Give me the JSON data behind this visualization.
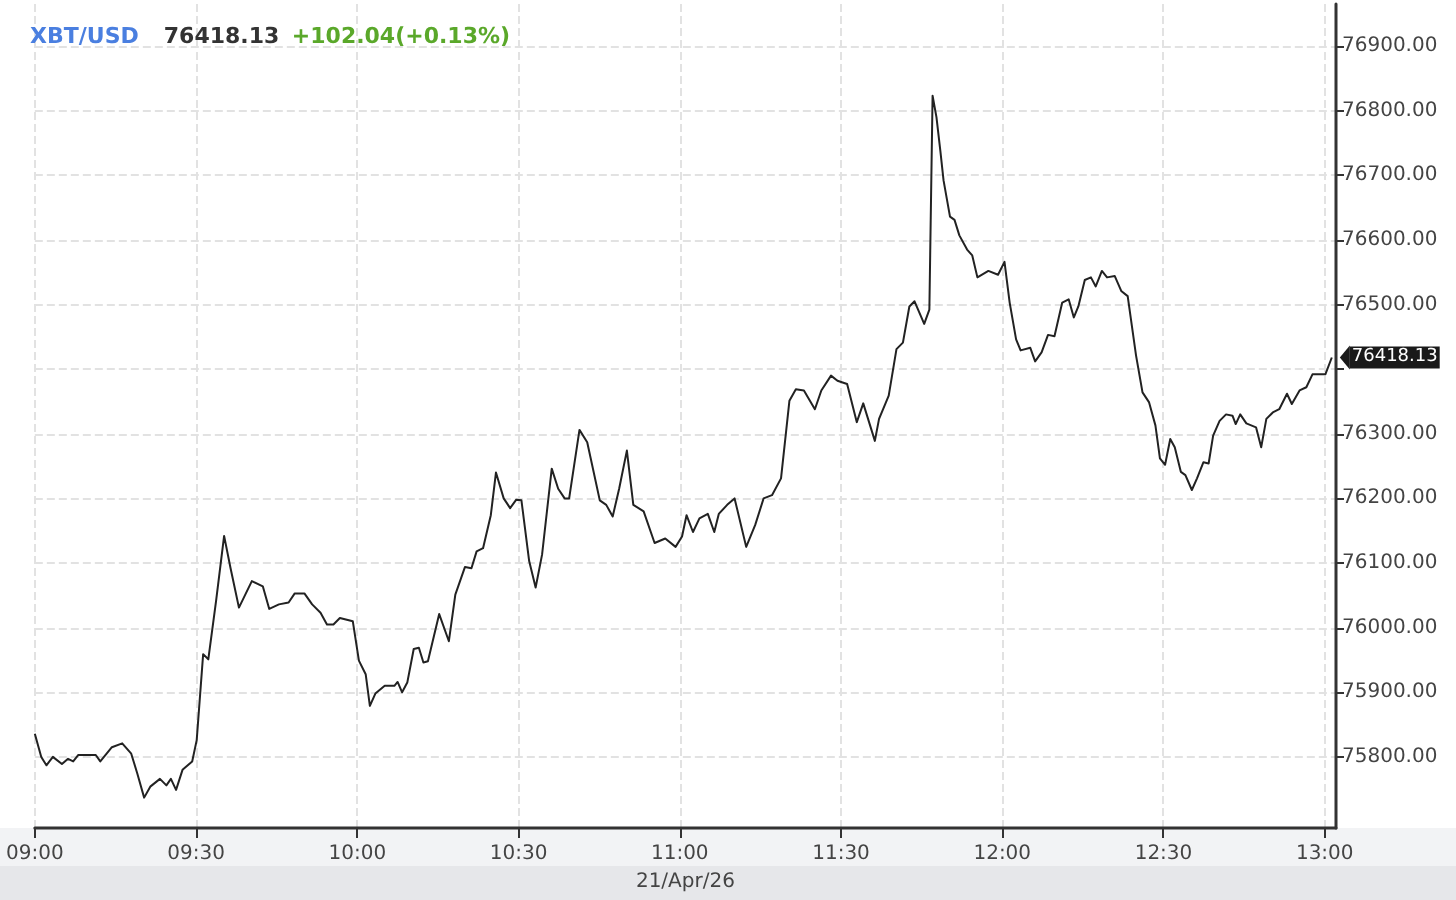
{
  "chart_data": {
    "type": "line",
    "title": "XBT/USD",
    "annotations": [
      "76418.13",
      "+102.04(+0.13%)",
      "21/Apr/26",
      {
        "text": "76418.13",
        "x": 13.022,
        "y": 76418.13
      }
    ],
    "x": [
      9.0,
      9.02,
      9.036,
      9.056,
      9.084,
      9.103,
      9.119,
      9.135,
      9.189,
      9.203,
      9.239,
      9.271,
      9.299,
      9.318,
      9.339,
      9.358,
      9.388,
      9.408,
      9.422,
      9.438,
      9.458,
      9.488,
      9.502,
      9.522,
      9.538,
      9.562,
      9.587,
      9.607,
      9.633,
      9.673,
      9.707,
      9.727,
      9.757,
      9.787,
      9.806,
      9.836,
      9.86,
      9.886,
      9.906,
      9.926,
      9.946,
      9.986,
      10.005,
      10.026,
      10.039,
      10.056,
      10.085,
      10.115,
      10.125,
      10.139,
      10.155,
      10.175,
      10.191,
      10.205,
      10.219,
      10.254,
      10.284,
      10.304,
      10.334,
      10.354,
      10.37,
      10.39,
      10.414,
      10.43,
      10.454,
      10.474,
      10.493,
      10.509,
      10.533,
      10.553,
      10.573,
      10.603,
      10.623,
      10.643,
      10.657,
      10.689,
      10.713,
      10.752,
      10.772,
      10.792,
      10.812,
      10.836,
      10.856,
      10.888,
      10.922,
      10.955,
      10.987,
      11.007,
      11.021,
      11.041,
      11.061,
      11.087,
      11.107,
      11.121,
      11.147,
      11.17,
      11.206,
      11.234,
      11.26,
      11.286,
      11.314,
      11.34,
      11.36,
      11.385,
      11.419,
      11.439,
      11.469,
      11.489,
      11.519,
      11.549,
      11.569,
      11.605,
      11.618,
      11.648,
      11.672,
      11.692,
      11.712,
      11.728,
      11.758,
      11.774,
      11.784,
      11.796,
      11.808,
      11.818,
      11.838,
      11.852,
      11.867,
      11.891,
      11.907,
      11.923,
      11.957,
      11.987,
      12.007,
      12.023,
      12.043,
      12.057,
      12.087,
      12.102,
      12.122,
      12.142,
      12.162,
      12.186,
      12.206,
      12.222,
      12.236,
      12.256,
      12.275,
      12.29,
      12.309,
      12.325,
      12.349,
      12.369,
      12.389,
      12.415,
      12.435,
      12.455,
      12.475,
      12.489,
      12.505,
      12.521,
      12.535,
      12.554,
      12.568,
      12.588,
      12.604,
      12.624,
      12.64,
      12.654,
      12.674,
      12.694,
      12.714,
      12.724,
      12.738,
      12.757,
      12.787,
      12.803,
      12.819,
      12.839,
      12.859,
      12.883,
      12.898,
      12.922,
      12.943,
      12.962,
      13.002,
      13.022
    ],
    "series": [
      {
        "color": "#222222",
        "values": [
          75836,
          75800,
          75787,
          75800,
          75789,
          75797,
          75793,
          75803,
          75803,
          75793,
          75815,
          75821,
          75805,
          75774,
          75737,
          75754,
          75766,
          75756,
          75766,
          75749,
          75780,
          75793,
          75826,
          75959,
          75951,
          76041,
          76142,
          76092,
          76031,
          76072,
          76064,
          76029,
          76036,
          76039,
          76053,
          76053,
          76036,
          76023,
          76005,
          76005,
          76015,
          76010,
          75949,
          75928,
          75879,
          75898,
          75910,
          75910,
          75916,
          75900,
          75915,
          75967,
          75969,
          75946,
          75948,
          76021,
          75979,
          76051,
          76094,
          76092,
          76118,
          76123,
          76174,
          76240,
          76200,
          76185,
          76198,
          76197,
          76103,
          76062,
          76113,
          76246,
          76215,
          76200,
          76200,
          76306,
          76287,
          76197,
          76190,
          76172,
          76215,
          76274,
          76190,
          76180,
          76131,
          76138,
          76125,
          76141,
          76174,
          76148,
          76169,
          76176,
          76148,
          76176,
          76190,
          76200,
          76125,
          76159,
          76200,
          76205,
          76231,
          76351,
          76369,
          76367,
          76338,
          76367,
          76390,
          76382,
          76377,
          76318,
          76347,
          76289,
          76323,
          76359,
          76431,
          76441,
          76497,
          76505,
          76470,
          76492,
          76823,
          76790,
          76738,
          76692,
          76636,
          76631,
          76607,
          76585,
          76576,
          76542,
          76552,
          76546,
          76566,
          76503,
          76446,
          76429,
          76433,
          76412,
          76426,
          76453,
          76451,
          76503,
          76508,
          76480,
          76497,
          76538,
          76542,
          76528,
          76552,
          76542,
          76544,
          76521,
          76513,
          76421,
          76364,
          76349,
          76313,
          76262,
          76252,
          76292,
          76279,
          76241,
          76236,
          76213,
          76231,
          76256,
          76254,
          76297,
          76320,
          76330,
          76328,
          76315,
          76330,
          76316,
          76310,
          76279,
          76323,
          76333,
          76338,
          76362,
          76346,
          76367,
          76372,
          76392,
          76392,
          76418
        ]
      }
    ],
    "xlim": [
      9,
      13.035
    ],
    "xticks": [
      {
        "value": 9,
        "label": "09:00"
      },
      {
        "value": 9.5,
        "label": "09:30"
      },
      {
        "value": 10,
        "label": "10:00"
      },
      {
        "value": 10.5,
        "label": "10:30"
      },
      {
        "value": 11,
        "label": "11:00"
      },
      {
        "value": 11.5,
        "label": "11:30"
      },
      {
        "value": 12,
        "label": "12:00"
      },
      {
        "value": 12.5,
        "label": "12:30"
      },
      {
        "value": 13,
        "label": "13:00"
      }
    ],
    "ylim": [
      75690,
      76965
    ],
    "yticks": [
      {
        "value": 75800,
        "label": "75800.00"
      },
      {
        "value": 75900,
        "label": "75900.00"
      },
      {
        "value": 76000,
        "label": "76000.00"
      },
      {
        "value": 76100,
        "label": "76100.00"
      },
      {
        "value": 76200,
        "label": "76200.00"
      },
      {
        "value": 76300,
        "label": "76300.00"
      },
      {
        "value": 76400,
        "label": null
      },
      {
        "value": 76500,
        "label": "76500.00"
      },
      {
        "value": 76600,
        "label": "76600.00"
      },
      {
        "value": 76700,
        "label": "76700.00"
      },
      {
        "value": 76800,
        "label": "76800.00"
      },
      {
        "value": 76900,
        "label": "76900.00"
      }
    ],
    "grid": true,
    "marker": "none",
    "line_style": "solid"
  }
}
